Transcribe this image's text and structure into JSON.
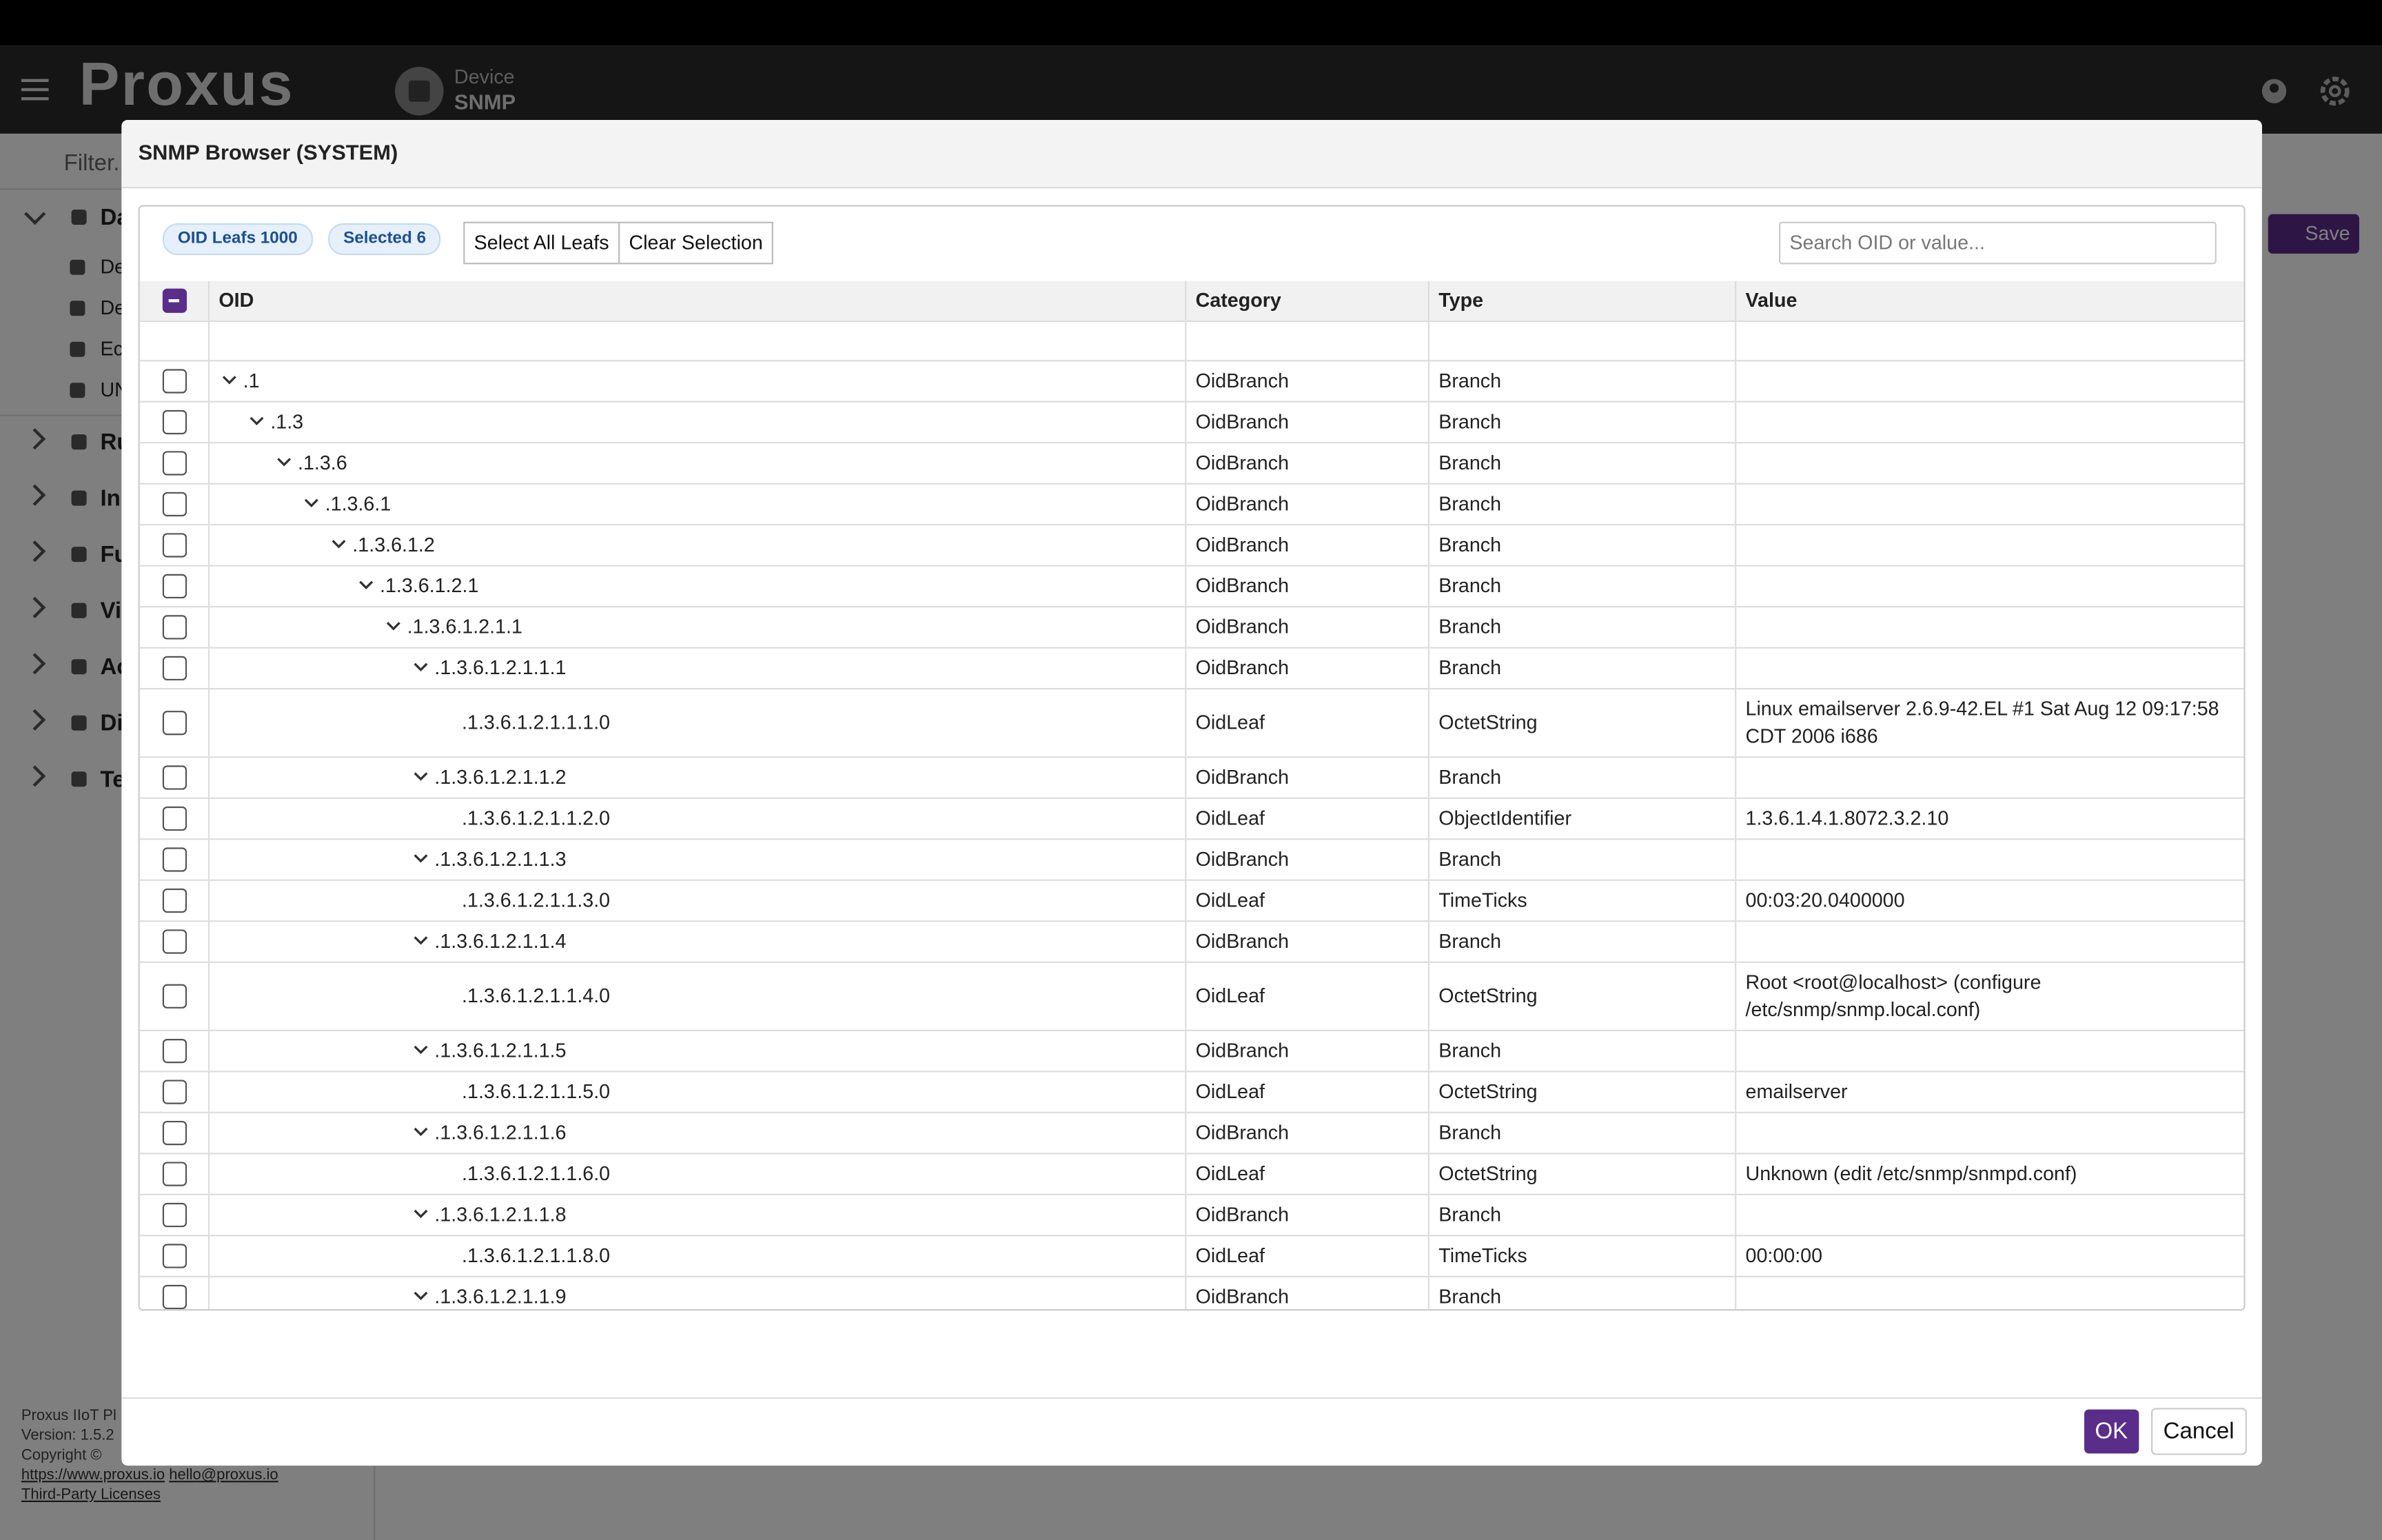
{
  "app": {
    "brand": "Proxus",
    "device_label": "Device",
    "device_name": "SNMP",
    "filter_placeholder": "Filter...",
    "save": "Save",
    "sidebar": [
      "Da",
      "De",
      "De",
      "Ec",
      "UN",
      "Ru",
      "In",
      "Fu",
      "Vi",
      "Ac",
      "Di",
      "Te"
    ],
    "footer": {
      "product": "Proxus IIoT Pl",
      "version": "Version: 1.5.2",
      "copyright": "Copyright ©",
      "website": "https://www.proxus.io",
      "email": "hello@proxus.io",
      "licenses": "Third-Party Licenses"
    }
  },
  "modal": {
    "title": "SNMP Browser (SYSTEM)",
    "badges": [
      "OID Leafs 1000",
      "Selected 6"
    ],
    "buttons": [
      "Select All Leafs",
      "Clear Selection"
    ],
    "search_placeholder": "Search OID or value...",
    "columns": [
      "OID",
      "Category",
      "Type",
      "Value"
    ],
    "rows": [
      {
        "oid": ".1",
        "category": "OidBranch",
        "type": "Branch"
      },
      {
        "oid": ".1.3",
        "category": "OidBranch",
        "type": "Branch"
      },
      {
        "oid": ".1.3.6",
        "category": "OidBranch",
        "type": "Branch"
      },
      {
        "oid": ".1.3.6.1",
        "category": "OidBranch",
        "type": "Branch"
      },
      {
        "oid": ".1.3.6.1.2",
        "category": "OidBranch",
        "type": "Branch"
      },
      {
        "oid": ".1.3.6.1.2.1",
        "category": "OidBranch",
        "type": "Branch"
      },
      {
        "oid": ".1.3.6.1.2.1.1",
        "category": "OidBranch",
        "type": "Branch"
      },
      {
        "oid": ".1.3.6.1.2.1.1.1",
        "category": "OidBranch",
        "type": "Branch"
      },
      {
        "oid": ".1.3.6.1.2.1.1.1.0",
        "category": "OidLeaf",
        "type": "OctetString",
        "value": "Linux emailserver 2.6.9-42.EL #1 Sat Aug 12 09:17:58 CDT 2006 i686"
      },
      {
        "oid": ".1.3.6.1.2.1.1.2",
        "category": "OidBranch",
        "type": "Branch"
      },
      {
        "oid": ".1.3.6.1.2.1.1.2.0",
        "category": "OidLeaf",
        "type": "ObjectIdentifier",
        "value": "1.3.6.1.4.1.8072.3.2.10"
      },
      {
        "oid": ".1.3.6.1.2.1.1.3",
        "category": "OidBranch",
        "type": "Branch"
      },
      {
        "oid": ".1.3.6.1.2.1.1.3.0",
        "category": "OidLeaf",
        "type": "TimeTicks",
        "value": "00:03:20.0400000"
      },
      {
        "oid": ".1.3.6.1.2.1.1.4",
        "category": "OidBranch",
        "type": "Branch"
      },
      {
        "oid": ".1.3.6.1.2.1.1.4.0",
        "category": "OidLeaf",
        "type": "OctetString",
        "value": "Root <root@localhost> (configure /etc/snmp/snmp.local.conf)"
      },
      {
        "oid": ".1.3.6.1.2.1.1.5",
        "category": "OidBranch",
        "type": "Branch"
      },
      {
        "oid": ".1.3.6.1.2.1.1.5.0",
        "category": "OidLeaf",
        "type": "OctetString",
        "value": "emailserver"
      },
      {
        "oid": ".1.3.6.1.2.1.1.6",
        "category": "OidBranch",
        "type": "Branch"
      },
      {
        "oid": ".1.3.6.1.2.1.1.6.0",
        "category": "OidLeaf",
        "type": "OctetString",
        "value": "Unknown (edit /etc/snmp/snmpd.conf)"
      },
      {
        "oid": ".1.3.6.1.2.1.1.8",
        "category": "OidBranch",
        "type": "Branch"
      },
      {
        "oid": ".1.3.6.1.2.1.1.8.0",
        "category": "OidLeaf",
        "type": "TimeTicks",
        "value": "00:00:00"
      },
      {
        "oid": ".1.3.6.1.2.1.1.9",
        "category": "OidBranch",
        "type": "Branch"
      }
    ],
    "ok": "OK",
    "cancel": "Cancel"
  }
}
